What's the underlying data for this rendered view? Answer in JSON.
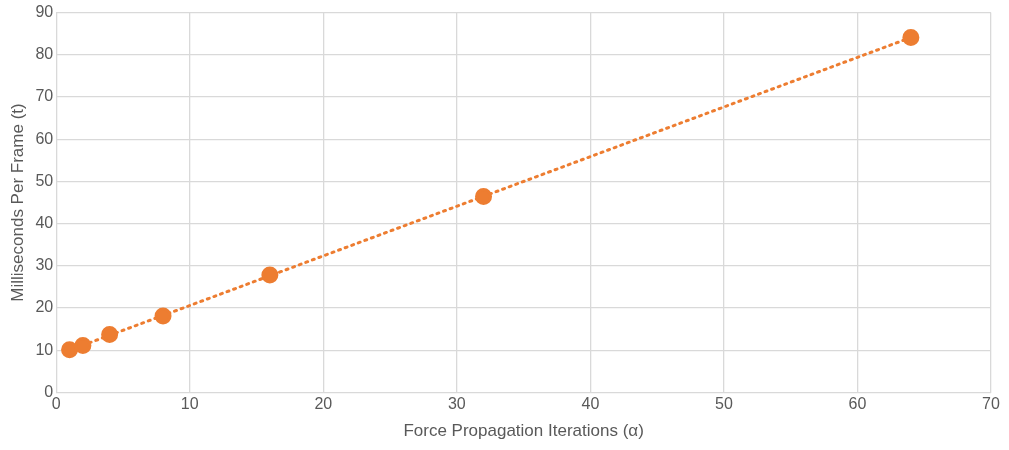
{
  "chart_data": {
    "type": "scatter",
    "xlabel": "Force Propagation Iterations (α)",
    "ylabel": "Milliseconds Per Frame (t)",
    "x": [
      1,
      2,
      4,
      8,
      16,
      32,
      64
    ],
    "series": [
      {
        "type": "scatter",
        "color": "#ed7d31",
        "marker": "circle",
        "values": [
          10.1,
          11.1,
          13.7,
          18.1,
          27.8,
          46.4,
          84.1
        ]
      },
      {
        "type": "line",
        "color": "#ed7d31",
        "marker": "none",
        "line_style": "dotted",
        "x": [
          1,
          64
        ],
        "values": [
          10.0,
          84.1
        ]
      }
    ],
    "xlim": [
      0,
      70
    ],
    "xticks": [
      0,
      10,
      20,
      30,
      40,
      50,
      60,
      70
    ],
    "ylim": [
      0,
      90
    ],
    "yticks": [
      0,
      10,
      20,
      30,
      40,
      50,
      60,
      70,
      80,
      90
    ],
    "grid": true,
    "legend": false
  }
}
